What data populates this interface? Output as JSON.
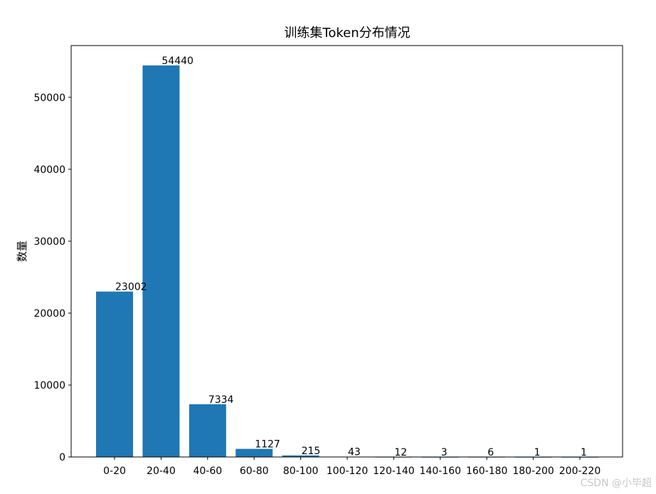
{
  "chart_data": {
    "type": "bar",
    "title": "训练集Token分布情况",
    "xlabel": "",
    "ylabel": "数量",
    "categories": [
      "0-20",
      "20-40",
      "40-60",
      "60-80",
      "80-100",
      "100-120",
      "120-140",
      "140-160",
      "160-180",
      "180-200",
      "200-220"
    ],
    "values": [
      23002,
      54440,
      7334,
      1127,
      215,
      43,
      12,
      3,
      6,
      1,
      1
    ],
    "value_labels": [
      "23002",
      "54440",
      "7334",
      "1127",
      "215",
      "43",
      "12",
      "3",
      "6",
      "1",
      "1"
    ],
    "ylim": [
      0,
      57200
    ],
    "yticks": [
      0,
      10000,
      20000,
      30000,
      40000,
      50000
    ],
    "ytick_labels": [
      "0",
      "10000",
      "20000",
      "30000",
      "40000",
      "50000"
    ],
    "bar_color": "#1f77b4",
    "grid": false,
    "legend": "none"
  },
  "watermark": "CSDN @小毕超"
}
